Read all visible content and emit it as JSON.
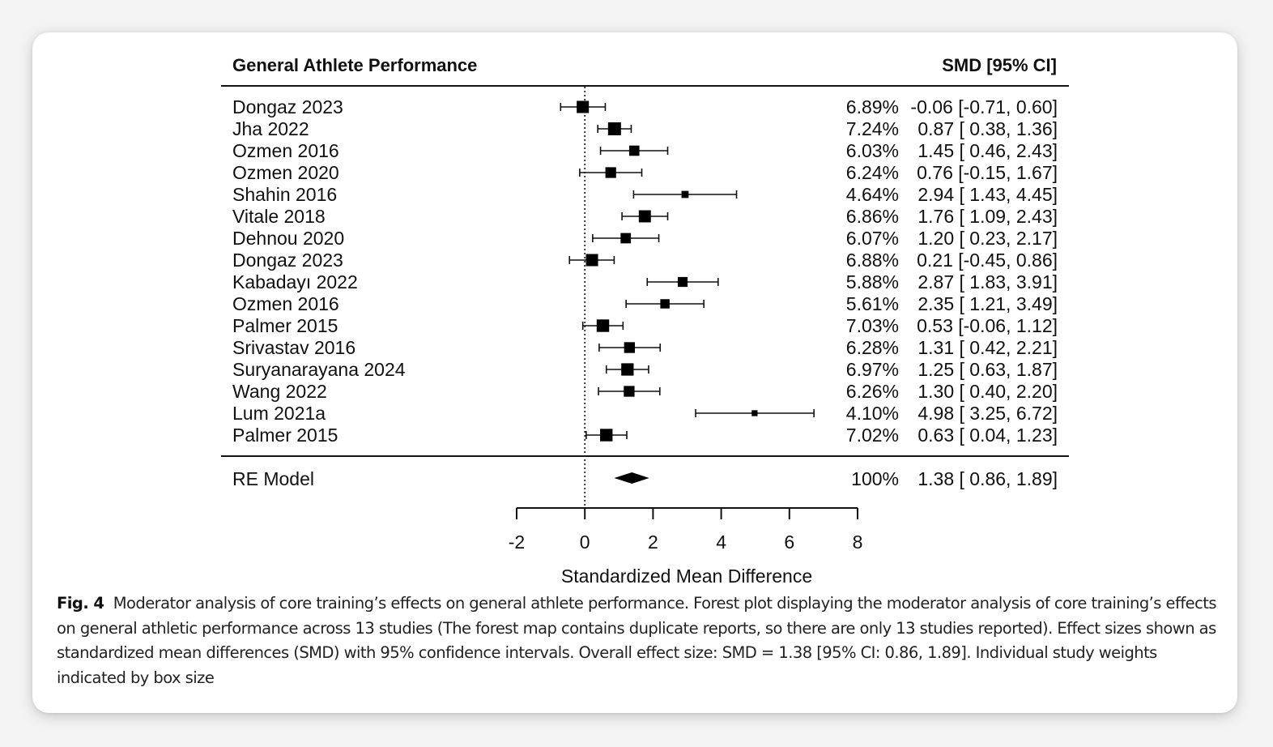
{
  "chart_data": {
    "type": "forest",
    "title": "General Athlete Performance",
    "ci_header": "SMD [95% CI]",
    "xlabel": "Standardized Mean Difference",
    "xlim": [
      -2,
      8
    ],
    "xticks": [
      "-2",
      "0",
      "2",
      "4",
      "6",
      "8"
    ],
    "reference_line": 0,
    "studies": [
      {
        "name": "Dongaz 2023",
        "weight": "6.89%",
        "smd": -0.06,
        "lower": -0.71,
        "upper": 0.6,
        "ci_text": "-0.06 [-0.71, 0.60]"
      },
      {
        "name": "Jha 2022",
        "weight": "7.24%",
        "smd": 0.87,
        "lower": 0.38,
        "upper": 1.36,
        "ci_text": "0.87 [ 0.38, 1.36]"
      },
      {
        "name": "Ozmen 2016",
        "weight": "6.03%",
        "smd": 1.45,
        "lower": 0.46,
        "upper": 2.43,
        "ci_text": "1.45 [ 0.46, 2.43]"
      },
      {
        "name": "Ozmen 2020",
        "weight": "6.24%",
        "smd": 0.76,
        "lower": -0.15,
        "upper": 1.67,
        "ci_text": "0.76 [-0.15, 1.67]"
      },
      {
        "name": "Shahin 2016",
        "weight": "4.64%",
        "smd": 2.94,
        "lower": 1.43,
        "upper": 4.45,
        "ci_text": "2.94 [ 1.43, 4.45]"
      },
      {
        "name": "Vitale 2018",
        "weight": "6.86%",
        "smd": 1.76,
        "lower": 1.09,
        "upper": 2.43,
        "ci_text": "1.76 [ 1.09, 2.43]"
      },
      {
        "name": "Dehnou 2020",
        "weight": "6.07%",
        "smd": 1.2,
        "lower": 0.23,
        "upper": 2.17,
        "ci_text": "1.20 [ 0.23, 2.17]"
      },
      {
        "name": "Dongaz 2023",
        "weight": "6.88%",
        "smd": 0.21,
        "lower": -0.45,
        "upper": 0.86,
        "ci_text": "0.21 [-0.45, 0.86]"
      },
      {
        "name": "Kabadayı 2022",
        "weight": "5.88%",
        "smd": 2.87,
        "lower": 1.83,
        "upper": 3.91,
        "ci_text": "2.87 [ 1.83, 3.91]"
      },
      {
        "name": "Ozmen 2016",
        "weight": "5.61%",
        "smd": 2.35,
        "lower": 1.21,
        "upper": 3.49,
        "ci_text": "2.35 [ 1.21, 3.49]"
      },
      {
        "name": "Palmer 2015",
        "weight": "7.03%",
        "smd": 0.53,
        "lower": -0.06,
        "upper": 1.12,
        "ci_text": "0.53 [-0.06, 1.12]"
      },
      {
        "name": "Srivastav 2016",
        "weight": "6.28%",
        "smd": 1.31,
        "lower": 0.42,
        "upper": 2.21,
        "ci_text": "1.31 [ 0.42, 2.21]"
      },
      {
        "name": "Suryanarayana 2024",
        "weight": "6.97%",
        "smd": 1.25,
        "lower": 0.63,
        "upper": 1.87,
        "ci_text": "1.25 [ 0.63, 1.87]"
      },
      {
        "name": "Wang 2022",
        "weight": "6.26%",
        "smd": 1.3,
        "lower": 0.4,
        "upper": 2.2,
        "ci_text": "1.30 [ 0.40, 2.20]"
      },
      {
        "name": "Lum 2021a",
        "weight": "4.10%",
        "smd": 4.98,
        "lower": 3.25,
        "upper": 6.72,
        "ci_text": "4.98 [ 3.25, 6.72]"
      },
      {
        "name": "Palmer 2015",
        "weight": "7.02%",
        "smd": 0.63,
        "lower": 0.04,
        "upper": 1.23,
        "ci_text": "0.63 [ 0.04, 1.23]"
      }
    ],
    "summary": {
      "name": "RE Model",
      "weight": "100%",
      "smd": 1.38,
      "lower": 0.86,
      "upper": 1.89,
      "ci_text": "1.38 [ 0.86, 1.89]"
    }
  },
  "caption": {
    "fig_label": "Fig. 4",
    "text": "Moderator analysis of core training’s effects on general athlete performance. Forest plot displaying the moderator analysis of core training’s effects on general athletic performance across 13 studies (The forest map contains duplicate reports, so there are only 13 studies reported). Effect sizes shown as standardized mean differences (SMD) with 95% confidence intervals. Overall effect size: SMD = 1.38 [95% CI: 0.86, 1.89]. Individual study weights indicated by box size"
  }
}
